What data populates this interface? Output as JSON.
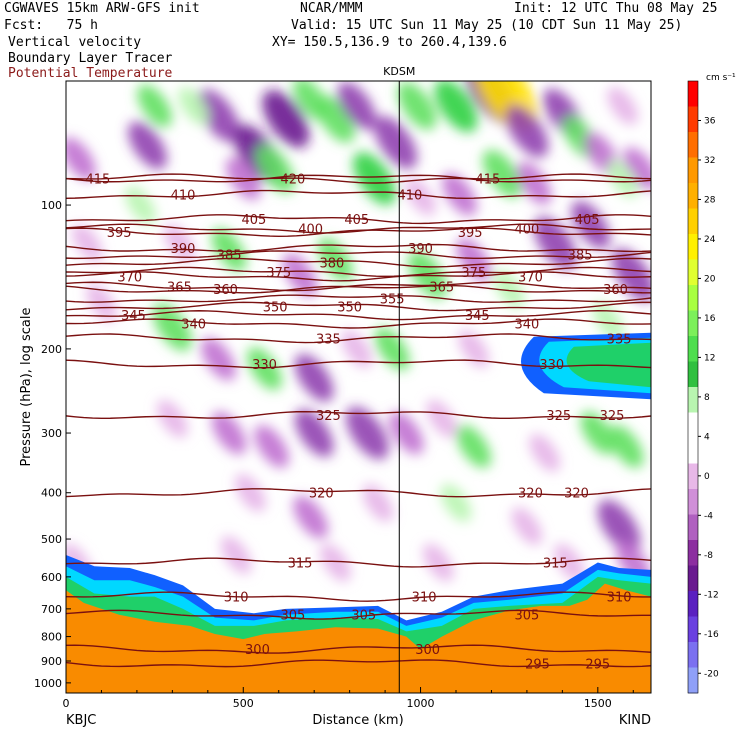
{
  "header": {
    "model": "CGWAVES 15km ARW-GFS init",
    "org": "NCAR/MMM",
    "init": "Init: 12 UTC Thu 08 May 25",
    "fcst": "Fcst:   75 h",
    "valid": "Valid: 15 UTC Sun 11 May 25 (10 CDT Sun 11 May 25)",
    "field1": "Vertical velocity",
    "field2": "Boundary Layer Tracer",
    "field3": "Potential Temperature",
    "xy": "XY= 150.5,136.9 to 260.4,139.6"
  },
  "chart_data": {
    "type": "heatmap",
    "marker_label": "KDSM",
    "marker_x_km": 940,
    "xlabel": "Distance (km)",
    "ylabel": "Pressure (hPa), log scale",
    "x_ticks": [
      "0",
      "500",
      "1000",
      "1500"
    ],
    "x_tick_values": [
      0,
      500,
      1000,
      1500
    ],
    "xlim": [
      0,
      1650
    ],
    "left_station": "KBJC",
    "right_station": "KIND",
    "y_ticks": [
      "100",
      "200",
      "300",
      "400",
      "500",
      "600",
      "700",
      "800",
      "900",
      "1000"
    ],
    "y_tick_values": [
      100,
      200,
      300,
      400,
      500,
      600,
      700,
      800,
      900,
      1000
    ],
    "ylim": [
      1050,
      55
    ],
    "y_scale": "log",
    "colorbar": {
      "unit": "cm s⁻¹",
      "labels": [
        "36",
        "32",
        "28",
        "24",
        "20",
        "16",
        "12",
        "8",
        "4",
        "0",
        "-4",
        "-8",
        "-12",
        "-16",
        "-20"
      ],
      "label_values": [
        36,
        32,
        28,
        24,
        20,
        16,
        12,
        8,
        4,
        0,
        -4,
        -8,
        -12,
        -16,
        -20
      ],
      "colors": [
        "#ff0000",
        "#ff3b00",
        "#ff6e00",
        "#ff9900",
        "#ffb000",
        "#ffd000",
        "#fff000",
        "#e0ff30",
        "#a8ff40",
        "#7cf05a",
        "#4ede4e",
        "#30c040",
        "#b8f5b0",
        "#ffffff",
        "#ffffff",
        "#e8b8e8",
        "#d08fd8",
        "#b060c0",
        "#8c2ea0",
        "#6a1a90",
        "#5a20c0",
        "#6a40e0",
        "#7b70f0",
        "#8fa0f8"
      ]
    },
    "theta_contours": [
      {
        "value": 415,
        "p": 88,
        "labels_km": [
          90,
          1190
        ]
      },
      {
        "value": 410,
        "p": 95,
        "labels_km": [
          330,
          970
        ]
      },
      {
        "value": 405,
        "p": 107,
        "labels_km": [
          530,
          820,
          1470
        ]
      },
      {
        "value": 420,
        "p": 88,
        "labels_km": [
          640
        ]
      },
      {
        "value": 400,
        "p": 112,
        "labels_km": [
          690,
          1300
        ]
      },
      {
        "value": 395,
        "p": 114,
        "labels_km": [
          150,
          1140
        ]
      },
      {
        "value": 390,
        "p": 123,
        "labels_km": [
          330,
          1000
        ]
      },
      {
        "value": 385,
        "p": 127,
        "labels_km": [
          460,
          1450
        ]
      },
      {
        "value": 380,
        "p": 132,
        "labels_km": [
          750
        ]
      },
      {
        "value": 375,
        "p": 138,
        "labels_km": [
          600,
          1150
        ]
      },
      {
        "value": 370,
        "p": 141,
        "labels_km": [
          180,
          1310
        ]
      },
      {
        "value": 365,
        "p": 148,
        "labels_km": [
          320,
          1060
        ]
      },
      {
        "value": 360,
        "p": 150,
        "labels_km": [
          450,
          1550
        ]
      },
      {
        "value": 355,
        "p": 157,
        "labels_km": [
          920
        ]
      },
      {
        "value": 350,
        "p": 163,
        "labels_km": [
          590,
          800
        ]
      },
      {
        "value": 345,
        "p": 170,
        "labels_km": [
          190,
          1160
        ]
      },
      {
        "value": 340,
        "p": 177,
        "labels_km": [
          360,
          1300
        ]
      },
      {
        "value": 335,
        "p": 190,
        "labels_km": [
          740,
          1560
        ]
      },
      {
        "value": 330,
        "p": 215,
        "labels_km": [
          560,
          1370
        ]
      },
      {
        "value": 325,
        "p": 275,
        "labels_km": [
          740,
          1390,
          1540
        ]
      },
      {
        "value": 320,
        "p": 400,
        "labels_km": [
          720,
          1310,
          1440
        ]
      },
      {
        "value": 315,
        "p": 560,
        "labels_km": [
          660,
          1380
        ]
      },
      {
        "value": 310,
        "p": 660,
        "labels_km": [
          480,
          1010,
          1560
        ]
      },
      {
        "value": 305,
        "p": 720,
        "labels_km": [
          640,
          840,
          1300
        ]
      },
      {
        "value": 300,
        "p": 850,
        "labels_km": [
          540,
          1020
        ]
      },
      {
        "value": 295,
        "p": 910,
        "labels_km": [
          1330,
          1500
        ]
      }
    ],
    "w_cells": [
      {
        "x": 35,
        "p": 80,
        "w": -6
      },
      {
        "x": 230,
        "p": 75,
        "w": -8
      },
      {
        "x": 430,
        "p": 65,
        "w": -10
      },
      {
        "x": 540,
        "p": 78,
        "w": -12
      },
      {
        "x": 250,
        "p": 62,
        "w": 6
      },
      {
        "x": 360,
        "p": 62,
        "w": 4
      },
      {
        "x": 620,
        "p": 66,
        "w": -12
      },
      {
        "x": 690,
        "p": 60,
        "w": 6
      },
      {
        "x": 760,
        "p": 66,
        "w": 8
      },
      {
        "x": 820,
        "p": 62,
        "w": -8
      },
      {
        "x": 930,
        "p": 74,
        "w": -10
      },
      {
        "x": 990,
        "p": 62,
        "w": 8
      },
      {
        "x": 1100,
        "p": 62,
        "w": 10
      },
      {
        "x": 1200,
        "p": 58,
        "w": -14
      },
      {
        "x": 1240,
        "p": 58,
        "w": 20
      },
      {
        "x": 1300,
        "p": 70,
        "w": -10
      },
      {
        "x": 1400,
        "p": 64,
        "w": -8
      },
      {
        "x": 1450,
        "p": 72,
        "w": 6
      },
      {
        "x": 1570,
        "p": 62,
        "w": -4
      },
      {
        "x": 1620,
        "p": 84,
        "w": -6
      },
      {
        "x": 60,
        "p": 120,
        "w": -4
      },
      {
        "x": 210,
        "p": 100,
        "w": 4
      },
      {
        "x": 320,
        "p": 120,
        "w": -4
      },
      {
        "x": 500,
        "p": 88,
        "w": -6
      },
      {
        "x": 590,
        "p": 84,
        "w": 8
      },
      {
        "x": 870,
        "p": 88,
        "w": 10
      },
      {
        "x": 1000,
        "p": 96,
        "w": -4
      },
      {
        "x": 1110,
        "p": 95,
        "w": -6
      },
      {
        "x": 1230,
        "p": 86,
        "w": 8
      },
      {
        "x": 1320,
        "p": 90,
        "w": -6
      },
      {
        "x": 1510,
        "p": 78,
        "w": -6
      },
      {
        "x": 1570,
        "p": 88,
        "w": 4
      },
      {
        "x": 100,
        "p": 160,
        "w": -4
      },
      {
        "x": 300,
        "p": 180,
        "w": 8
      },
      {
        "x": 460,
        "p": 124,
        "w": 6
      },
      {
        "x": 660,
        "p": 140,
        "w": -6
      },
      {
        "x": 760,
        "p": 130,
        "w": 6
      },
      {
        "x": 1020,
        "p": 140,
        "w": 8
      },
      {
        "x": 1150,
        "p": 130,
        "w": -6
      },
      {
        "x": 1250,
        "p": 150,
        "w": 4
      },
      {
        "x": 1380,
        "p": 120,
        "w": -10
      },
      {
        "x": 1480,
        "p": 110,
        "w": -8
      },
      {
        "x": 1600,
        "p": 140,
        "w": -10
      },
      {
        "x": 1530,
        "p": 175,
        "w": 4
      },
      {
        "x": 430,
        "p": 210,
        "w": -6
      },
      {
        "x": 560,
        "p": 220,
        "w": 6
      },
      {
        "x": 700,
        "p": 230,
        "w": -8
      },
      {
        "x": 820,
        "p": 200,
        "w": -4
      },
      {
        "x": 920,
        "p": 200,
        "w": 6
      },
      {
        "x": 1150,
        "p": 200,
        "w": -4
      },
      {
        "x": 1390,
        "p": 210,
        "w": 4
      },
      {
        "x": 300,
        "p": 280,
        "w": -4
      },
      {
        "x": 460,
        "p": 300,
        "w": -6
      },
      {
        "x": 580,
        "p": 320,
        "w": -6
      },
      {
        "x": 700,
        "p": 300,
        "w": -8
      },
      {
        "x": 850,
        "p": 300,
        "w": -10
      },
      {
        "x": 960,
        "p": 300,
        "w": -6
      },
      {
        "x": 1060,
        "p": 280,
        "w": -4
      },
      {
        "x": 1150,
        "p": 320,
        "w": 6
      },
      {
        "x": 1350,
        "p": 330,
        "w": -4
      },
      {
        "x": 1500,
        "p": 300,
        "w": 6
      },
      {
        "x": 1580,
        "p": 320,
        "w": 6
      },
      {
        "x": 520,
        "p": 400,
        "w": -4
      },
      {
        "x": 690,
        "p": 450,
        "w": -6
      },
      {
        "x": 880,
        "p": 420,
        "w": -4
      },
      {
        "x": 1100,
        "p": 420,
        "w": 4
      },
      {
        "x": 1300,
        "p": 470,
        "w": -4
      },
      {
        "x": 1560,
        "p": 470,
        "w": -10
      },
      {
        "x": 1600,
        "p": 560,
        "w": -6
      },
      {
        "x": 30,
        "p": 560,
        "w": -4
      },
      {
        "x": 480,
        "p": 540,
        "w": -4
      },
      {
        "x": 760,
        "p": 560,
        "w": -4
      },
      {
        "x": 1050,
        "p": 560,
        "w": -4
      },
      {
        "x": 1420,
        "p": 560,
        "w": -4
      }
    ],
    "tracer_layers": [
      {
        "name": "boundary",
        "color": "#f98b00",
        "from_p": 1050,
        "top": [
          [
            0,
            640
          ],
          [
            50,
            680
          ],
          [
            150,
            720
          ],
          [
            250,
            745
          ],
          [
            350,
            760
          ],
          [
            420,
            790
          ],
          [
            500,
            810
          ],
          [
            560,
            790
          ],
          [
            650,
            780
          ],
          [
            760,
            765
          ],
          [
            880,
            770
          ],
          [
            960,
            800
          ],
          [
            1000,
            850
          ],
          [
            1060,
            800
          ],
          [
            1150,
            740
          ],
          [
            1250,
            705
          ],
          [
            1340,
            690
          ],
          [
            1420,
            690
          ],
          [
            1470,
            670
          ],
          [
            1520,
            620
          ],
          [
            1580,
            640
          ],
          [
            1650,
            660
          ]
        ]
      },
      {
        "name": "green",
        "color": "#1fd069",
        "top": [
          [
            0,
            600
          ],
          [
            80,
            650
          ],
          [
            180,
            660
          ],
          [
            250,
            660
          ],
          [
            330,
            700
          ],
          [
            420,
            760
          ],
          [
            530,
            760
          ],
          [
            620,
            740
          ],
          [
            760,
            730
          ],
          [
            880,
            735
          ],
          [
            960,
            780
          ],
          [
            1060,
            760
          ],
          [
            1150,
            700
          ],
          [
            1250,
            690
          ],
          [
            1400,
            680
          ],
          [
            1500,
            600
          ],
          [
            1560,
            610
          ],
          [
            1650,
            620
          ]
        ]
      },
      {
        "name": "cyan",
        "color": "#00d8ff",
        "top": [
          [
            0,
            570
          ],
          [
            80,
            610
          ],
          [
            180,
            610
          ],
          [
            250,
            630
          ],
          [
            330,
            660
          ],
          [
            420,
            730
          ],
          [
            530,
            740
          ],
          [
            620,
            720
          ],
          [
            760,
            710
          ],
          [
            880,
            710
          ],
          [
            960,
            760
          ],
          [
            1060,
            730
          ],
          [
            1150,
            680
          ],
          [
            1250,
            670
          ],
          [
            1400,
            650
          ],
          [
            1500,
            580
          ],
          [
            1560,
            590
          ],
          [
            1650,
            600
          ]
        ]
      },
      {
        "name": "blue",
        "color": "#1060ff",
        "top": [
          [
            0,
            540
          ],
          [
            80,
            570
          ],
          [
            180,
            575
          ],
          [
            250,
            595
          ],
          [
            330,
            625
          ],
          [
            420,
            700
          ],
          [
            530,
            715
          ],
          [
            620,
            700
          ],
          [
            760,
            695
          ],
          [
            880,
            690
          ],
          [
            960,
            740
          ],
          [
            1060,
            710
          ],
          [
            1150,
            660
          ],
          [
            1250,
            640
          ],
          [
            1400,
            620
          ],
          [
            1500,
            560
          ],
          [
            1560,
            575
          ],
          [
            1650,
            580
          ]
        ]
      }
    ],
    "upper_blob": {
      "x0": 1235,
      "x1": 1650,
      "p_top": 185,
      "p_bottom": 255
    }
  }
}
